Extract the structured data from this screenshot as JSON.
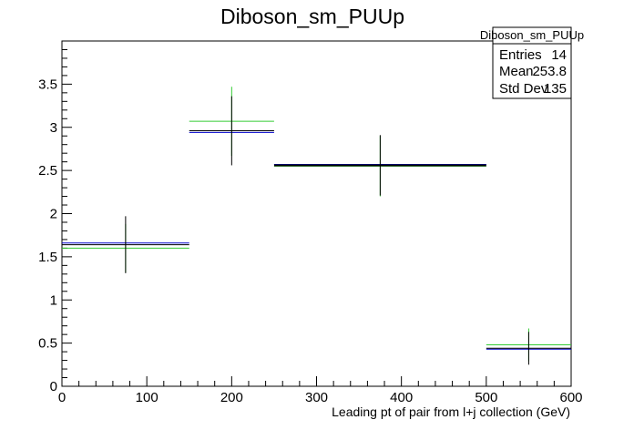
{
  "chart_data": {
    "type": "scatter",
    "title": "Diboson_sm_PUUp",
    "xlabel": "Leading pt of pair from l+j collection (GeV)",
    "ylabel": "",
    "xlim": [
      0,
      600
    ],
    "ylim": [
      0,
      4.0
    ],
    "xticks": [
      0,
      100,
      200,
      300,
      400,
      500,
      600
    ],
    "yticks": [
      0,
      0.5,
      1,
      1.5,
      2,
      2.5,
      3,
      3.5
    ],
    "ytick_labels": [
      "0",
      "0.5",
      "1",
      "1.5",
      "2",
      "2.5",
      "3",
      "3.5"
    ],
    "grid": false,
    "stats_box": {
      "title": "Diboson_sm_PUUp",
      "entries_label": "Entries",
      "entries": "14",
      "mean_label": "Mean",
      "mean": "253.8",
      "stddev_label": "Std Dev",
      "stddev": "135",
      "placement": "top-right"
    },
    "series": [
      {
        "color": "#000000",
        "bins": [
          {
            "xlo": 0,
            "xhi": 150,
            "y": 1.64,
            "err": 0.33
          },
          {
            "xlo": 150,
            "xhi": 250,
            "y": 2.96,
            "err": 0.4
          },
          {
            "xlo": 250,
            "xhi": 500,
            "y": 2.56,
            "err": 0.35
          },
          {
            "xlo": 500,
            "xhi": 600,
            "y": 0.44,
            "err": 0.19
          }
        ]
      },
      {
        "color": "#0000cc",
        "bins": [
          {
            "xlo": 0,
            "xhi": 150,
            "y": 1.66
          },
          {
            "xlo": 150,
            "xhi": 250,
            "y": 2.94
          },
          {
            "xlo": 250,
            "xhi": 500,
            "y": 2.57
          },
          {
            "xlo": 500,
            "xhi": 600,
            "y": 0.43
          }
        ]
      },
      {
        "color": "#33cc33",
        "bins": [
          {
            "xlo": 0,
            "xhi": 150,
            "y": 1.6,
            "err": 0.28
          },
          {
            "xlo": 150,
            "xhi": 250,
            "y": 3.07,
            "err": 0.4
          },
          {
            "xlo": 250,
            "xhi": 500,
            "y": 2.55,
            "err": 0.35
          },
          {
            "xlo": 500,
            "xhi": 600,
            "y": 0.48,
            "err": 0.19
          }
        ]
      }
    ]
  }
}
